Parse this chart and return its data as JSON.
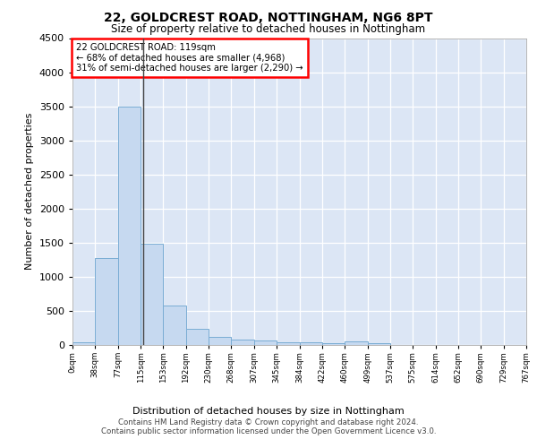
{
  "title_line1": "22, GOLDCREST ROAD, NOTTINGHAM, NG6 8PT",
  "title_line2": "Size of property relative to detached houses in Nottingham",
  "xlabel": "Distribution of detached houses by size in Nottingham",
  "ylabel": "Number of detached properties",
  "footer_line1": "Contains HM Land Registry data © Crown copyright and database right 2024.",
  "footer_line2": "Contains public sector information licensed under the Open Government Licence v3.0.",
  "annotation_line1": "22 GOLDCREST ROAD: 119sqm",
  "annotation_line2": "← 68% of detached houses are smaller (4,968)",
  "annotation_line3": "31% of semi-detached houses are larger (2,290) →",
  "bar_edges": [
    0,
    38,
    77,
    115,
    153,
    192,
    230,
    268,
    307,
    345,
    384,
    422,
    460,
    499,
    537,
    575,
    614,
    652,
    690,
    729,
    767
  ],
  "bar_values": [
    40,
    1270,
    3500,
    1480,
    580,
    240,
    115,
    85,
    60,
    45,
    35,
    30,
    55,
    25,
    0,
    0,
    0,
    0,
    0,
    0
  ],
  "bar_color": "#c6d9f0",
  "bar_edge_color": "#7aadd4",
  "property_line_x": 119,
  "ylim": [
    0,
    4500
  ],
  "yticks": [
    0,
    500,
    1000,
    1500,
    2000,
    2500,
    3000,
    3500,
    4000,
    4500
  ],
  "plot_bg_color": "#dce6f5",
  "fig_bg_color": "#ffffff"
}
